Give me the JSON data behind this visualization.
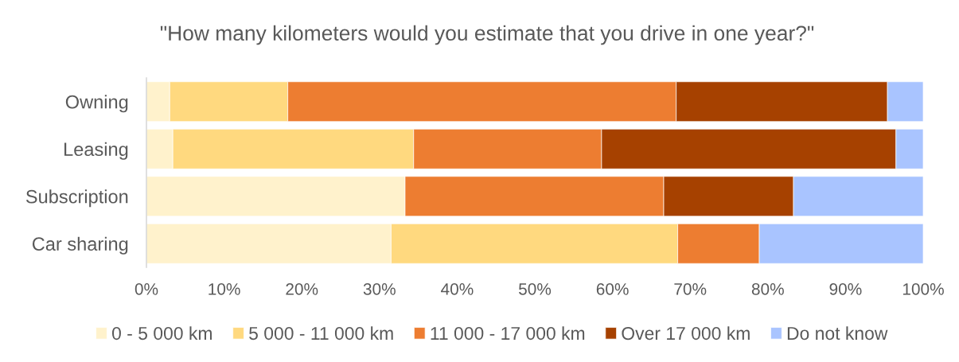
{
  "chart_data": {
    "type": "bar",
    "orientation": "horizontal",
    "stacked": true,
    "title": "\"How many kilometers would you estimate that you drive in one year?\"",
    "categories": [
      "Owning",
      "Leasing",
      "Subscription",
      "Car sharing"
    ],
    "series": [
      {
        "name": "0 - 5 000 km",
        "color": "#fff2cc",
        "values": [
          3.0,
          3.4,
          33.3,
          31.5
        ]
      },
      {
        "name": "5 000 - 11 000 km",
        "color": "#ffd97f",
        "values": [
          15.2,
          31.0,
          0,
          36.9
        ]
      },
      {
        "name": "11 000 - 17 000 km",
        "color": "#ed7d31",
        "values": [
          50.0,
          24.2,
          33.3,
          10.5
        ]
      },
      {
        "name": "Over 17 000 km",
        "color": "#a64100",
        "values": [
          27.2,
          37.9,
          16.7,
          0
        ]
      },
      {
        "name": "Do not know",
        "color": "#a9c4ff",
        "values": [
          4.6,
          3.5,
          16.7,
          21.1
        ]
      }
    ],
    "xlim": [
      0,
      100
    ],
    "xticks": [
      {
        "value": 0,
        "label": "0%"
      },
      {
        "value": 10,
        "label": "10%"
      },
      {
        "value": 20,
        "label": "20%"
      },
      {
        "value": 30,
        "label": "30%"
      },
      {
        "value": 40,
        "label": "40%"
      },
      {
        "value": 50,
        "label": "50%"
      },
      {
        "value": 60,
        "label": "60%"
      },
      {
        "value": 70,
        "label": "70%"
      },
      {
        "value": 80,
        "label": "80%"
      },
      {
        "value": 90,
        "label": "90%"
      },
      {
        "value": 100,
        "label": "100%"
      }
    ],
    "legend": "bottom",
    "grid": false
  }
}
